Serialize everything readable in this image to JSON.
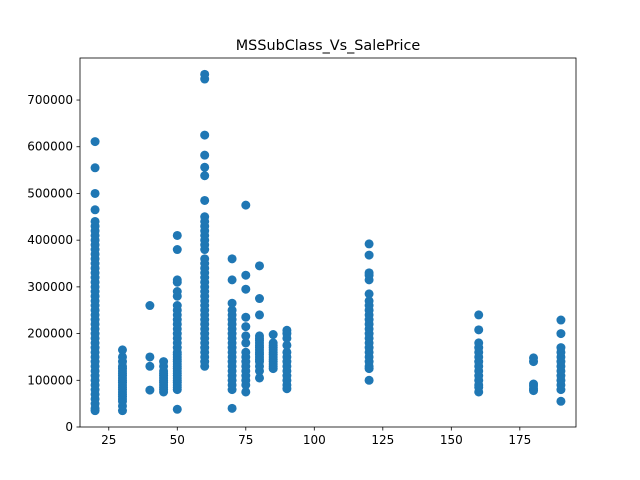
{
  "chart_data": {
    "type": "scatter",
    "title": "MSSubClass_Vs_SalePrice",
    "xlabel": "",
    "ylabel": "",
    "xlim": [
      14.5,
      195.5
    ],
    "ylim": [
      0,
      790000
    ],
    "xticks": [
      25,
      50,
      75,
      100,
      125,
      150,
      175
    ],
    "yticks": [
      0,
      100000,
      200000,
      300000,
      400000,
      500000,
      600000,
      700000
    ],
    "marker_color": "#1f77b4",
    "grid": false,
    "series": [
      {
        "groups": [
          {
            "x": 20,
            "y": [
              35000,
              40000,
              50000,
              60000,
              70000,
              80000,
              90000,
              100000,
              110000,
              120000,
              130000,
              140000,
              150000,
              160000,
              170000,
              180000,
              190000,
              200000,
              210000,
              220000,
              230000,
              240000,
              250000,
              260000,
              270000,
              280000,
              290000,
              300000,
              310000,
              320000,
              330000,
              340000,
              350000,
              360000,
              370000,
              380000,
              390000,
              400000,
              410000,
              420000,
              430000,
              440000,
              465000,
              500000,
              555000,
              611000
            ]
          },
          {
            "x": 30,
            "y": [
              35000,
              45000,
              55000,
              60000,
              65000,
              70000,
              75000,
              80000,
              85000,
              90000,
              95000,
              100000,
              105000,
              110000,
              115000,
              120000,
              125000,
              130000,
              140000,
              150000,
              165000
            ]
          },
          {
            "x": 40,
            "y": [
              79000,
              130000,
              150000,
              260000
            ]
          },
          {
            "x": 45,
            "y": [
              75000,
              80000,
              85000,
              90000,
              95000,
              100000,
              105000,
              110000,
              115000,
              120000,
              130000,
              140000
            ]
          },
          {
            "x": 50,
            "y": [
              37900,
              80000,
              85000,
              90000,
              95000,
              100000,
              105000,
              110000,
              115000,
              120000,
              125000,
              130000,
              135000,
              140000,
              145000,
              150000,
              155000,
              160000,
              170000,
              180000,
              190000,
              200000,
              210000,
              220000,
              230000,
              240000,
              250000,
              260000,
              280000,
              290000,
              310000,
              315000,
              380000,
              410000
            ]
          },
          {
            "x": 60,
            "y": [
              130000,
              140000,
              150000,
              160000,
              170000,
              180000,
              190000,
              200000,
              210000,
              220000,
              230000,
              240000,
              250000,
              260000,
              270000,
              280000,
              290000,
              300000,
              310000,
              320000,
              330000,
              340000,
              350000,
              360000,
              380000,
              390000,
              400000,
              410000,
              420000,
              430000,
              440000,
              450000,
              485000,
              538000,
              556000,
              582000,
              625000,
              745000,
              755000
            ]
          },
          {
            "x": 70,
            "y": [
              40000,
              80000,
              90000,
              100000,
              110000,
              120000,
              130000,
              140000,
              150000,
              160000,
              170000,
              180000,
              190000,
              200000,
              210000,
              220000,
              230000,
              240000,
              250000,
              265000,
              315000,
              360000
            ]
          },
          {
            "x": 75,
            "y": [
              75000,
              90000,
              100000,
              110000,
              120000,
              130000,
              140000,
              150000,
              160000,
              180000,
              195000,
              215000,
              235000,
              295000,
              325000,
              475000
            ]
          },
          {
            "x": 80,
            "y": [
              105000,
              120000,
              130000,
              140000,
              145000,
              150000,
              155000,
              160000,
              165000,
              170000,
              175000,
              180000,
              185000,
              190000,
              195000,
              240000,
              275000,
              345000
            ]
          },
          {
            "x": 85,
            "y": [
              125000,
              130000,
              135000,
              140000,
              145000,
              150000,
              155000,
              160000,
              165000,
              170000,
              175000,
              180000,
              198000
            ]
          },
          {
            "x": 90,
            "y": [
              82000,
              90000,
              100000,
              110000,
              120000,
              130000,
              140000,
              150000,
              160000,
              175000,
              190000,
              200000,
              207000
            ]
          },
          {
            "x": 120,
            "y": [
              100000,
              125000,
              130000,
              140000,
              150000,
              160000,
              170000,
              180000,
              190000,
              200000,
              210000,
              220000,
              230000,
              240000,
              250000,
              260000,
              270000,
              285000,
              315000,
              325000,
              330000,
              368000,
              392000
            ]
          },
          {
            "x": 160,
            "y": [
              75000,
              85000,
              90000,
              100000,
              110000,
              120000,
              130000,
              140000,
              150000,
              160000,
              170000,
              180000,
              208000,
              240000
            ]
          },
          {
            "x": 180,
            "y": [
              78000,
              82000,
              88000,
              92000,
              140000,
              148000
            ]
          },
          {
            "x": 190,
            "y": [
              55000,
              80000,
              90000,
              100000,
              110000,
              120000,
              130000,
              140000,
              150000,
              160000,
              170000,
              200000,
              229000
            ]
          }
        ]
      }
    ]
  }
}
